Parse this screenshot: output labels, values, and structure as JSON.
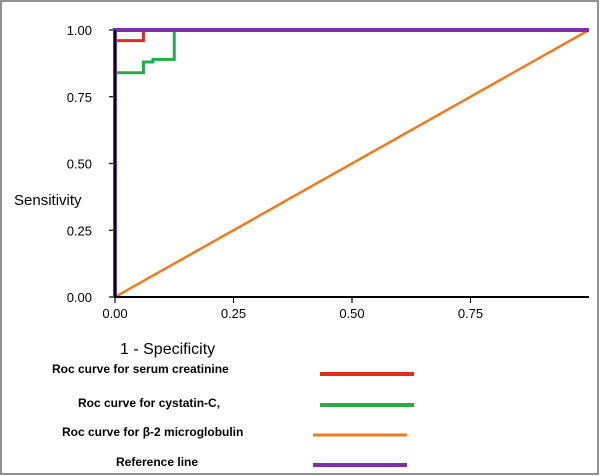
{
  "chart_data": {
    "type": "line",
    "title": "",
    "xlabel": "1 - Specificity",
    "ylabel": "Sensitivity",
    "xlim": [
      0,
      1
    ],
    "ylim": [
      0,
      1
    ],
    "x_ticks": [
      "0.00",
      "0.25",
      "0.50",
      "0.75"
    ],
    "y_ticks": [
      "0.00",
      "0.25",
      "0.50",
      "0.75",
      "1.00"
    ],
    "grid": false,
    "legend_position": "bottom",
    "series": [
      {
        "name": "Roc curve for serum creatinine",
        "color": "#e8281e",
        "points": [
          [
            0,
            0
          ],
          [
            0,
            0.96
          ],
          [
            0.06,
            0.96
          ],
          [
            0.06,
            1.0
          ],
          [
            1.0,
            1.0
          ]
        ]
      },
      {
        "name": "Roc curve for cystatin-C,",
        "color": "#1fae4b",
        "points": [
          [
            0,
            0
          ],
          [
            0,
            0.84
          ],
          [
            0.06,
            0.84
          ],
          [
            0.06,
            0.88
          ],
          [
            0.08,
            0.88
          ],
          [
            0.08,
            0.89
          ],
          [
            0.125,
            0.89
          ],
          [
            0.125,
            1.0
          ],
          [
            1.0,
            1.0
          ]
        ]
      },
      {
        "name": "Roc curve for β-2 microglobulin",
        "color": "#ef7a1c",
        "points": [
          [
            0,
            0
          ],
          [
            1.0,
            1.0
          ]
        ]
      },
      {
        "name": "Reference line",
        "color": "#7b2fa8",
        "points": [
          [
            0,
            0
          ],
          [
            0,
            1.0
          ],
          [
            1.0,
            1.0
          ]
        ]
      }
    ]
  }
}
